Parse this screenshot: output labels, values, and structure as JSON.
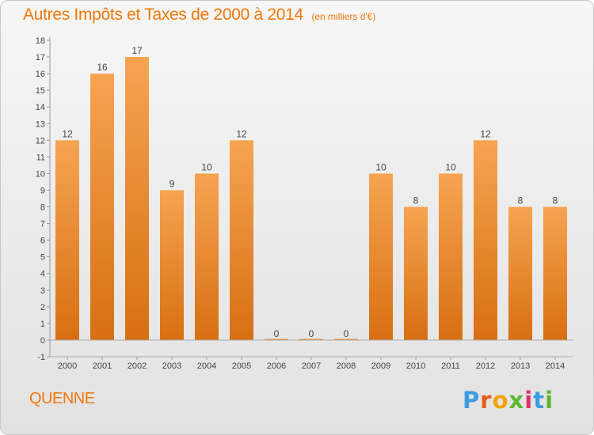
{
  "chart_data": {
    "type": "bar",
    "title": "Autres Impôts et Taxes de 2000 à 2014",
    "subtitle": "(en milliers d'€)",
    "categories": [
      "2000",
      "2001",
      "2002",
      "2003",
      "2004",
      "2005",
      "2006",
      "2007",
      "2008",
      "2009",
      "2010",
      "2011",
      "2012",
      "2013",
      "2014"
    ],
    "values": [
      12,
      16,
      17,
      9,
      10,
      12,
      0,
      0,
      0,
      10,
      8,
      10,
      12,
      8,
      8
    ],
    "ylim": [
      -1,
      18
    ],
    "yticks": [
      -1,
      0,
      1,
      2,
      3,
      4,
      5,
      6,
      7,
      8,
      9,
      10,
      11,
      12,
      13,
      14,
      15,
      16,
      17,
      18
    ],
    "grid": false,
    "bar_color": "#f0861e",
    "bar_color_light": "#f6a451",
    "bar_color_dark": "#d86f12"
  },
  "commune": "QUENNE",
  "logo": {
    "letters": [
      "P",
      "r",
      "o",
      "x",
      "i",
      "t",
      "i"
    ],
    "colors": [
      "#3a9de0",
      "#e85b1a",
      "#f5a300",
      "#5bb832",
      "#e0306a",
      "#3a9de0",
      "#5bb832"
    ]
  },
  "colors": {
    "title": "#f0780a"
  }
}
